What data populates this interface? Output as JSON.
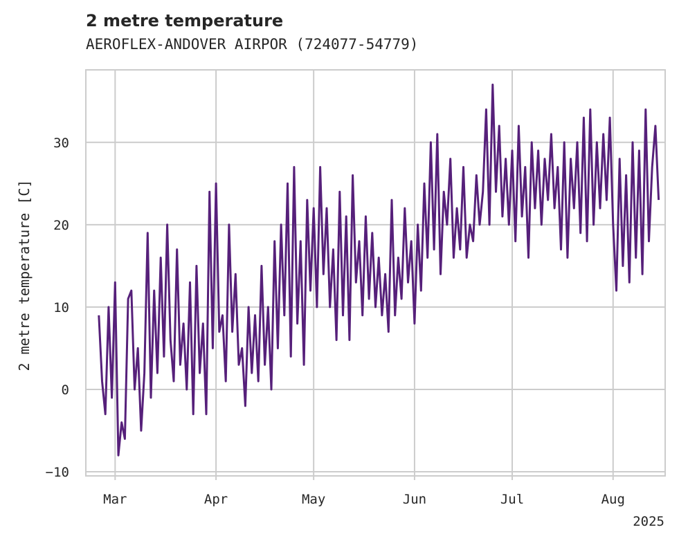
{
  "chart_data": {
    "type": "line",
    "title": "2 metre temperature",
    "subtitle": "AEROFLEX-ANDOVER AIRPOR (724077-54779)",
    "ylabel": "2 metre temperature [C]",
    "xlabel": "",
    "year_label": "2025",
    "xlim": [
      "2025-02-20",
      "2025-08-17"
    ],
    "ylim": [
      -10.5,
      38.8
    ],
    "x_ticks": [
      {
        "date": "2025-03-01",
        "label": "Mar"
      },
      {
        "date": "2025-04-01",
        "label": "Apr"
      },
      {
        "date": "2025-05-01",
        "label": "May"
      },
      {
        "date": "2025-06-01",
        "label": "Jun"
      },
      {
        "date": "2025-07-01",
        "label": "Jul"
      },
      {
        "date": "2025-08-01",
        "label": "Aug"
      }
    ],
    "y_ticks": [
      -10,
      0,
      10,
      20,
      30
    ],
    "grid": true,
    "line_color": "#56207a",
    "series": [
      {
        "name": "",
        "points": [
          [
            "2025-02-24",
            9
          ],
          [
            "2025-02-25",
            1
          ],
          [
            "2025-02-26",
            -3
          ],
          [
            "2025-02-27",
            10
          ],
          [
            "2025-02-28",
            -1
          ],
          [
            "2025-03-01",
            13
          ],
          [
            "2025-03-02",
            -8
          ],
          [
            "2025-03-03",
            -4
          ],
          [
            "2025-03-04",
            -6
          ],
          [
            "2025-03-05",
            11
          ],
          [
            "2025-03-06",
            12
          ],
          [
            "2025-03-07",
            0
          ],
          [
            "2025-03-08",
            5
          ],
          [
            "2025-03-09",
            -5
          ],
          [
            "2025-03-10",
            2
          ],
          [
            "2025-03-11",
            19
          ],
          [
            "2025-03-12",
            -1
          ],
          [
            "2025-03-13",
            12
          ],
          [
            "2025-03-14",
            2
          ],
          [
            "2025-03-15",
            16
          ],
          [
            "2025-03-16",
            4
          ],
          [
            "2025-03-17",
            20
          ],
          [
            "2025-03-18",
            6
          ],
          [
            "2025-03-19",
            1
          ],
          [
            "2025-03-20",
            17
          ],
          [
            "2025-03-21",
            3
          ],
          [
            "2025-03-22",
            8
          ],
          [
            "2025-03-23",
            0
          ],
          [
            "2025-03-24",
            13
          ],
          [
            "2025-03-25",
            -3
          ],
          [
            "2025-03-26",
            15
          ],
          [
            "2025-03-27",
            2
          ],
          [
            "2025-03-28",
            8
          ],
          [
            "2025-03-29",
            -3
          ],
          [
            "2025-03-30",
            24
          ],
          [
            "2025-03-31",
            5
          ],
          [
            "2025-04-01",
            25
          ],
          [
            "2025-04-02",
            7
          ],
          [
            "2025-04-03",
            9
          ],
          [
            "2025-04-04",
            1
          ],
          [
            "2025-04-05",
            20
          ],
          [
            "2025-04-06",
            7
          ],
          [
            "2025-04-07",
            14
          ],
          [
            "2025-04-08",
            3
          ],
          [
            "2025-04-09",
            5
          ],
          [
            "2025-04-10",
            -2
          ],
          [
            "2025-04-11",
            10
          ],
          [
            "2025-04-12",
            2
          ],
          [
            "2025-04-13",
            9
          ],
          [
            "2025-04-14",
            1
          ],
          [
            "2025-04-15",
            15
          ],
          [
            "2025-04-16",
            3
          ],
          [
            "2025-04-17",
            10
          ],
          [
            "2025-04-18",
            0
          ],
          [
            "2025-04-19",
            18
          ],
          [
            "2025-04-20",
            5
          ],
          [
            "2025-04-21",
            20
          ],
          [
            "2025-04-22",
            9
          ],
          [
            "2025-04-23",
            25
          ],
          [
            "2025-04-24",
            4
          ],
          [
            "2025-04-25",
            27
          ],
          [
            "2025-04-26",
            8
          ],
          [
            "2025-04-27",
            18
          ],
          [
            "2025-04-28",
            3
          ],
          [
            "2025-04-29",
            23
          ],
          [
            "2025-04-30",
            12
          ],
          [
            "2025-05-01",
            22
          ],
          [
            "2025-05-02",
            10
          ],
          [
            "2025-05-03",
            27
          ],
          [
            "2025-05-04",
            14
          ],
          [
            "2025-05-05",
            22
          ],
          [
            "2025-05-06",
            10
          ],
          [
            "2025-05-07",
            17
          ],
          [
            "2025-05-08",
            6
          ],
          [
            "2025-05-09",
            24
          ],
          [
            "2025-05-10",
            9
          ],
          [
            "2025-05-11",
            21
          ],
          [
            "2025-05-12",
            6
          ],
          [
            "2025-05-13",
            26
          ],
          [
            "2025-05-14",
            13
          ],
          [
            "2025-05-15",
            18
          ],
          [
            "2025-05-16",
            9
          ],
          [
            "2025-05-17",
            21
          ],
          [
            "2025-05-18",
            11
          ],
          [
            "2025-05-19",
            19
          ],
          [
            "2025-05-20",
            10
          ],
          [
            "2025-05-21",
            16
          ],
          [
            "2025-05-22",
            9
          ],
          [
            "2025-05-23",
            14
          ],
          [
            "2025-05-24",
            7
          ],
          [
            "2025-05-25",
            23
          ],
          [
            "2025-05-26",
            9
          ],
          [
            "2025-05-27",
            16
          ],
          [
            "2025-05-28",
            11
          ],
          [
            "2025-05-29",
            22
          ],
          [
            "2025-05-30",
            13
          ],
          [
            "2025-05-31",
            18
          ],
          [
            "2025-06-01",
            8
          ],
          [
            "2025-06-02",
            20
          ],
          [
            "2025-06-03",
            12
          ],
          [
            "2025-06-04",
            25
          ],
          [
            "2025-06-05",
            16
          ],
          [
            "2025-06-06",
            30
          ],
          [
            "2025-06-07",
            17
          ],
          [
            "2025-06-08",
            31
          ],
          [
            "2025-06-09",
            14
          ],
          [
            "2025-06-10",
            24
          ],
          [
            "2025-06-11",
            20
          ],
          [
            "2025-06-12",
            28
          ],
          [
            "2025-06-13",
            16
          ],
          [
            "2025-06-14",
            22
          ],
          [
            "2025-06-15",
            17
          ],
          [
            "2025-06-16",
            27
          ],
          [
            "2025-06-17",
            16
          ],
          [
            "2025-06-18",
            20
          ],
          [
            "2025-06-19",
            18
          ],
          [
            "2025-06-20",
            26
          ],
          [
            "2025-06-21",
            20
          ],
          [
            "2025-06-22",
            24
          ],
          [
            "2025-06-23",
            34
          ],
          [
            "2025-06-24",
            20
          ],
          [
            "2025-06-25",
            37
          ],
          [
            "2025-06-26",
            24
          ],
          [
            "2025-06-27",
            32
          ],
          [
            "2025-06-28",
            21
          ],
          [
            "2025-06-29",
            28
          ],
          [
            "2025-06-30",
            20
          ],
          [
            "2025-07-01",
            29
          ],
          [
            "2025-07-02",
            18
          ],
          [
            "2025-07-03",
            32
          ],
          [
            "2025-07-04",
            21
          ],
          [
            "2025-07-05",
            27
          ],
          [
            "2025-07-06",
            16
          ],
          [
            "2025-07-07",
            30
          ],
          [
            "2025-07-08",
            22
          ],
          [
            "2025-07-09",
            29
          ],
          [
            "2025-07-10",
            20
          ],
          [
            "2025-07-11",
            28
          ],
          [
            "2025-07-12",
            23
          ],
          [
            "2025-07-13",
            31
          ],
          [
            "2025-07-14",
            22
          ],
          [
            "2025-07-15",
            27
          ],
          [
            "2025-07-16",
            17
          ],
          [
            "2025-07-17",
            30
          ],
          [
            "2025-07-18",
            16
          ],
          [
            "2025-07-19",
            28
          ],
          [
            "2025-07-20",
            22
          ],
          [
            "2025-07-21",
            30
          ],
          [
            "2025-07-22",
            19
          ],
          [
            "2025-07-23",
            33
          ],
          [
            "2025-07-24",
            18
          ],
          [
            "2025-07-25",
            34
          ],
          [
            "2025-07-26",
            20
          ],
          [
            "2025-07-27",
            30
          ],
          [
            "2025-07-28",
            22
          ],
          [
            "2025-07-29",
            31
          ],
          [
            "2025-07-30",
            23
          ],
          [
            "2025-07-31",
            33
          ],
          [
            "2025-08-01",
            20
          ],
          [
            "2025-08-02",
            12
          ],
          [
            "2025-08-03",
            28
          ],
          [
            "2025-08-04",
            15
          ],
          [
            "2025-08-05",
            26
          ],
          [
            "2025-08-06",
            13
          ],
          [
            "2025-08-07",
            30
          ],
          [
            "2025-08-08",
            16
          ],
          [
            "2025-08-09",
            29
          ],
          [
            "2025-08-10",
            14
          ],
          [
            "2025-08-11",
            34
          ],
          [
            "2025-08-12",
            18
          ],
          [
            "2025-08-13",
            27
          ],
          [
            "2025-08-14",
            32
          ],
          [
            "2025-08-15",
            23
          ]
        ]
      }
    ]
  }
}
